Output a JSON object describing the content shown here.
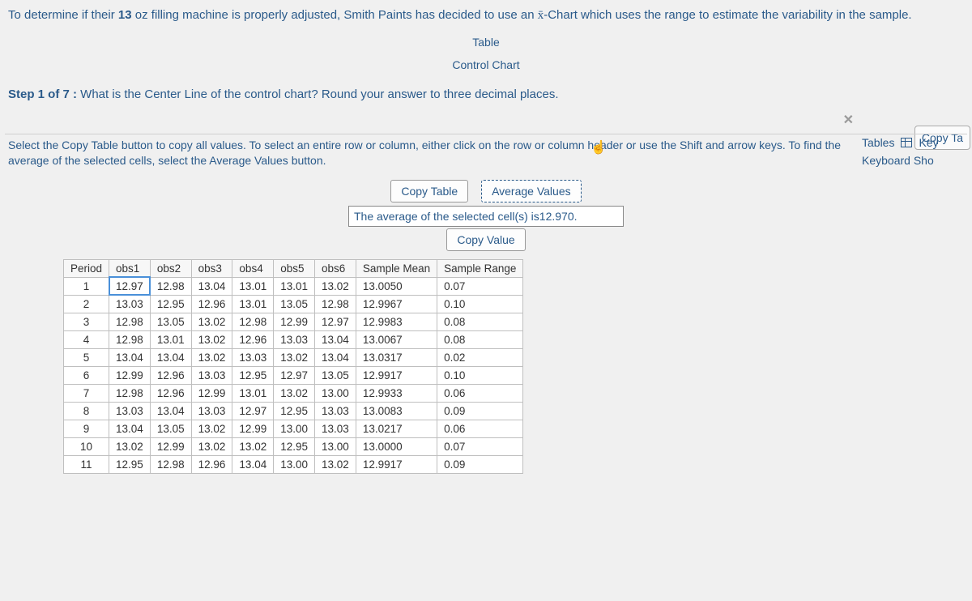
{
  "problem": {
    "prefix": "To determine if their ",
    "oz": "13",
    "mid": " oz filling machine is properly adjusted, Smith Paints has decided to use an ",
    "xbar": "x̄",
    "suffix": "-Chart which uses the range to estimate the variability in the sample."
  },
  "tabs": {
    "table": "Table",
    "chart": "Control Chart"
  },
  "copy_ta": "Copy Ta",
  "step": {
    "label": "Step 1 of 7 :",
    "text": "  What is the Center Line of the control chart? Round your answer to three decimal places."
  },
  "right": {
    "tables": "Tables",
    "key": "Key",
    "shortcut": "Keyboard Sho"
  },
  "instructions": "Select the Copy Table button to copy all values. To select an entire row or column, either click on the row or column header or use the Shift and arrow keys. To find the average of the selected cells, select the Average Values button.",
  "buttons": {
    "copy_table": "Copy Table",
    "average": "Average Values",
    "copy_value": "Copy Value"
  },
  "avg_line": {
    "prefix": "The average of the selected cell(s) is",
    "value": "12.970"
  },
  "table": {
    "headers": [
      "Period",
      "obs1",
      "obs2",
      "obs3",
      "obs4",
      "obs5",
      "obs6",
      "Sample Mean",
      "Sample Range"
    ],
    "rows": [
      [
        "1",
        "12.97",
        "12.98",
        "13.04",
        "13.01",
        "13.01",
        "13.02",
        "13.0050",
        "0.07"
      ],
      [
        "2",
        "13.03",
        "12.95",
        "12.96",
        "13.01",
        "13.05",
        "12.98",
        "12.9967",
        "0.10"
      ],
      [
        "3",
        "12.98",
        "13.05",
        "13.02",
        "12.98",
        "12.99",
        "12.97",
        "12.9983",
        "0.08"
      ],
      [
        "4",
        "12.98",
        "13.01",
        "13.02",
        "12.96",
        "13.03",
        "13.04",
        "13.0067",
        "0.08"
      ],
      [
        "5",
        "13.04",
        "13.04",
        "13.02",
        "13.03",
        "13.02",
        "13.04",
        "13.0317",
        "0.02"
      ],
      [
        "6",
        "12.99",
        "12.96",
        "13.03",
        "12.95",
        "12.97",
        "13.05",
        "12.9917",
        "0.10"
      ],
      [
        "7",
        "12.98",
        "12.96",
        "12.99",
        "13.01",
        "13.02",
        "13.00",
        "12.9933",
        "0.06"
      ],
      [
        "8",
        "13.03",
        "13.04",
        "13.03",
        "12.97",
        "12.95",
        "13.03",
        "13.0083",
        "0.09"
      ],
      [
        "9",
        "13.04",
        "13.05",
        "13.02",
        "12.99",
        "13.00",
        "13.03",
        "13.0217",
        "0.06"
      ],
      [
        "10",
        "13.02",
        "12.99",
        "13.02",
        "13.02",
        "12.95",
        "13.00",
        "13.0000",
        "0.07"
      ],
      [
        "11",
        "12.95",
        "12.98",
        "12.96",
        "13.04",
        "13.00",
        "13.02",
        "12.9917",
        "0.09"
      ]
    ],
    "selected_cell": {
      "row": 0,
      "col": 1
    }
  },
  "colors": {
    "text_blue": "#2a5a8a",
    "border_gray": "#bfbfbf",
    "bg": "#f0f0f0",
    "select": "#4a90d9"
  }
}
